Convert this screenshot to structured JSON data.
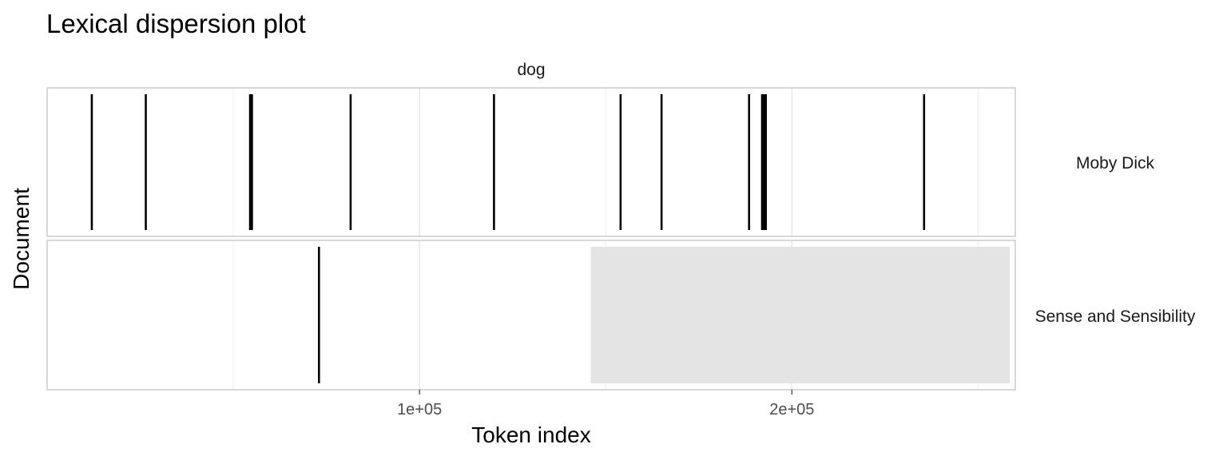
{
  "chart_data": {
    "type": "line",
    "title": "Lexical dispersion plot",
    "facet_label": "dog",
    "xlabel": "Token index",
    "ylabel": "Document",
    "xlim": [
      0,
      260000
    ],
    "x_ticks": [
      {
        "value": 100000,
        "label": "1e+05"
      },
      {
        "value": 200000,
        "label": "2e+05"
      }
    ],
    "x_minor_ticks": [
      50000,
      150000,
      250000
    ],
    "grid": true,
    "panels": [
      {
        "name": "Moby Dick",
        "positions": [
          12000,
          26500,
          54500,
          55000,
          81500,
          120000,
          154000,
          165000,
          188500,
          192000,
          192500,
          193000,
          235500
        ]
      },
      {
        "name": "Sense and Sensibility",
        "positions": [
          73000
        ],
        "shaded_range": [
          146000,
          258500
        ]
      }
    ],
    "colors": {
      "mark": "#000000",
      "grid": "#ebebeb",
      "border": "#bfbfbf",
      "shade": "#e4e4e4"
    }
  }
}
